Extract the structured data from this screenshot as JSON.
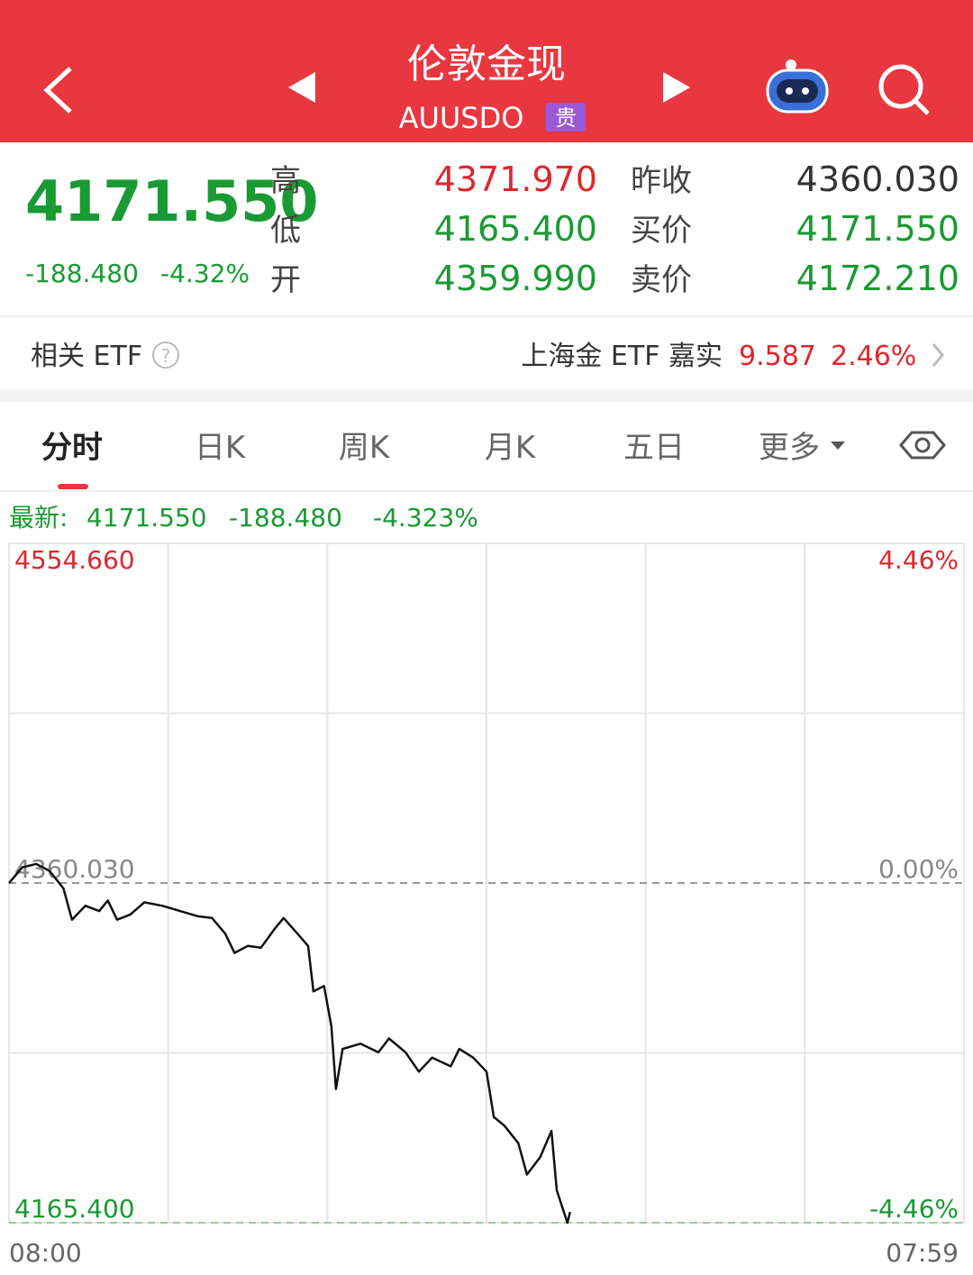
{
  "header": {
    "title": "伦敦金现",
    "code": "AUUSDO",
    "badge": "贵"
  },
  "quote": {
    "price": "4171.550",
    "change": "-188.480",
    "percent": "-4.32%",
    "fields": [
      {
        "label": "高",
        "value": "4371.970"
      },
      {
        "label": "低",
        "value": "4165.400"
      },
      {
        "label": "开",
        "value": "4359.990"
      },
      {
        "label": "昨收",
        "value": "4360.030"
      },
      {
        "label": "买价",
        "value": "4171.550"
      },
      {
        "label": "卖价",
        "value": "4172.210"
      }
    ]
  },
  "etf": {
    "label": "相关 ETF",
    "name": "上海金 ETF 嘉实",
    "price": "9.587",
    "percent": "2.46%"
  },
  "tabs": [
    "分时",
    "日K",
    "周K",
    "月K",
    "五日",
    "更多"
  ],
  "chart_data": {
    "type": "line",
    "latest_label": "最新:",
    "latest": [
      "4171.550",
      "-188.480",
      "-4.323%"
    ],
    "xlim": [
      0,
      1440
    ],
    "xticks": [
      {
        "value": 0,
        "label": "08:00"
      },
      {
        "value": 1439,
        "label": "07:59"
      }
    ],
    "ylim": [
      4165.4,
      4554.66
    ],
    "yticks": [
      {
        "value": 4554.66,
        "label": "4554.660"
      },
      {
        "value": 4360.03,
        "label": "4360.030"
      },
      {
        "value": 4165.4,
        "label": "4165.400"
      }
    ],
    "y2lim": [
      -4.46,
      4.46
    ],
    "y2ticks": [
      {
        "value": 4.46,
        "label": "4.46%"
      },
      {
        "value": 0,
        "label": "0.00%"
      },
      {
        "value": -4.46,
        "label": "-4.46%"
      }
    ],
    "grid": true,
    "series": [
      {
        "color": "#111111",
        "x": [
          0,
          20,
          41,
          61,
          82,
          95,
          115,
          136,
          149,
          163,
          183,
          204,
          231,
          258,
          285,
          306,
          326,
          340,
          360,
          380,
          401,
          414,
          435,
          451,
          459,
          475,
          486,
          493,
          503,
          530,
          557,
          573,
          598,
          618,
          638,
          666,
          679,
          700,
          720,
          731,
          747,
          768,
          781,
          801,
          818,
          826,
          842,
          846
        ],
        "values": [
          4360,
          4369,
          4371,
          4367,
          4357,
          4339,
          4347,
          4344,
          4350,
          4339,
          4342,
          4349,
          4347,
          4344,
          4341,
          4340,
          4331,
          4320,
          4324,
          4323,
          4334,
          4340,
          4331,
          4324,
          4298,
          4301,
          4278,
          4242,
          4265,
          4268,
          4263,
          4271,
          4263,
          4252,
          4260,
          4255,
          4265,
          4260,
          4252,
          4226,
          4221,
          4211,
          4193,
          4203,
          4218,
          4184,
          4165.4,
          4171.55
        ]
      }
    ]
  }
}
